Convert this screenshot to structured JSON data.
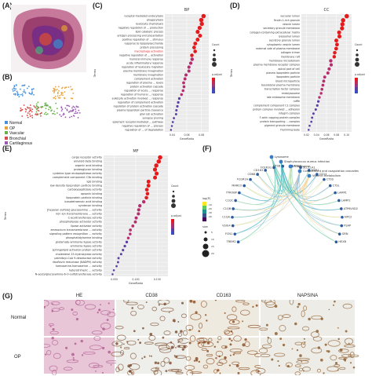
{
  "panels": {
    "a": "(A)",
    "b": "(B)",
    "c": "(C)",
    "d": "(D)",
    "e": "(E)",
    "f": "(F)",
    "g": "(G)"
  },
  "panel_b_legend": [
    "Normal",
    "OP",
    "Vascular",
    "Bronchial",
    "Cartilaginous"
  ],
  "panel_b_colors": [
    "#4a90d9",
    "#e8a33d",
    "#6ab04c",
    "#d94a4a",
    "#9b59b6"
  ],
  "chart_data": [
    {
      "type": "scatter",
      "title": "BP",
      "ylabel": "Terms",
      "xlabel": "GeneRatio",
      "categories": [
        "receptor-mediated endocytosis",
        "phagocytosis",
        "leukocyte chemotaxis",
        "negative regulation of ... production",
        "lipid catabolic process",
        "antigen processing and presentation",
        "positive regulation of ... stimulus",
        "response to lipopolysaccharide",
        "protein processing",
        "macrophage activation",
        "negative regulation of ... activation",
        "humoral immune response",
        "acute inflammatory response",
        "regulation of leukocyte migration",
        "plasma membrane invagination",
        "membrane invagination",
        "complement activation",
        "regulation of plasma ... levels",
        "protein activation cascade",
        "regulation of acute ... response",
        "regulation of humoral ... response",
        "eukocyte activation involved ... response",
        "regulation of complement activation",
        "regulation of protein activation cascade",
        "plasma lipoprotein particle clearance",
        "glial cell activation",
        "synapse pruning",
        "eplement receptor-mediated ... pathway",
        "negative regulation of ... process",
        "regulation of ... of degradation"
      ],
      "highlight": "macrophage activation",
      "ticks": [
        "0.04",
        "0.06",
        "0.08"
      ]
    },
    {
      "type": "scatter",
      "title": "CC",
      "ylabel": "Terms",
      "xlabel": "GeneRatio",
      "categories": [
        "vacuolar lumen",
        "ficolin-1-rich granule",
        "vesicle lumen",
        "secretory granule membrane",
        "collagen-containing extracellular matrix",
        "lysosomal lumen",
        "secretory granule lumen",
        "cytoplasmic vesicle lumen",
        "external side of plasma membrane",
        "collagen trimer",
        "membrane raft",
        "membrane microdomain",
        "plasma membrane receptor complex",
        "apical part of cell",
        "plasma lipoprotein particle",
        "lipoprotein particle",
        "blood microparticle",
        "basolateral plasma membrane",
        "transcription factor complex",
        "endolysosome",
        "late endosome membrane",
        "ruffle",
        "complement component C1 complex",
        "protein complex involved ... adhesion",
        "integrin complex",
        "F-actin capping protein complex",
        "protein transporting ... complex",
        "pigment granule membrane",
        "Flemming body"
      ],
      "ticks": [
        "0.02",
        "0.04",
        "0.06",
        "0.08",
        "0.10"
      ]
    },
    {
      "type": "scatter",
      "title": "MF",
      "ylabel": "Terms",
      "xlabel": "GeneRatio",
      "categories": [
        "cargo receptor activity",
        "amyloid-beta binding",
        "organic acid binding",
        "proteoglycan binding",
        "cysteine-type endopeptidase activity",
        "complement component C3b binding",
        "IgG binding",
        "low-density lipoprotein particle binding",
        "carboxypeptidase activity",
        "opsonin binding",
        "lipoprotein particle binding",
        "icosatetraenoic acid binding",
        "syndecan binding",
        "[heparan sulfate]-glucosamine ... activity",
        "iron ion transmembrane ... activity",
        "C-acyltransferase activity",
        "phospholipase activator activity",
        "lipase activator activity",
        "ammonium transmembrane ... activity",
        "signaling pattern recognition ... activity",
        "phosphatidylserine binding",
        "glutamate-ammonia ligase activity",
        "ammonia ligase activity",
        "sphingolipid activator protein activity",
        "cholesterol 25-hydroxylase activity",
        "palmitoyl-CoA 9-desaturase activity",
        "riboflavin reductase (NADPH) activity",
        "homoserine-homoserine ... activity",
        "heterotrimeric ... activity",
        "N-acetylglucosamine-6-O-sulfotransferase activity"
      ],
      "ticks": [
        "0.050",
        "0.100",
        "0.150"
      ]
    }
  ],
  "panel_f": {
    "top_labels": [
      "Lysosome",
      "Staphylococcus aureus infection",
      "Phagosome",
      "Complement and coagulation cascades",
      "Vitamin metabolism"
    ],
    "genes_left": [
      "TREM2",
      "FCN1",
      "VSIG4",
      "C1QA",
      "C1QB",
      "C1QC",
      "TYROBP",
      "MARCO",
      "FCGR1A",
      "CD68",
      "CD163",
      "FCER1G",
      "CTSB",
      "CTSD"
    ],
    "genes_right": [
      "SLC11A1",
      "MSR1",
      "CD14",
      "CTSS",
      "CTSL",
      "LAMP1",
      "LAMP2",
      "ATP6V0D2",
      "NPC2",
      "PSAP",
      "GRN",
      "HEXB"
    ],
    "legend_title_color": "log(P)",
    "legend_title_size": "size",
    "legend_color_ticks": [
      "-10",
      "-20",
      "-30",
      "-40"
    ],
    "legend_size_ticks": [
      "5",
      "10",
      "15",
      "20"
    ]
  },
  "panel_g": {
    "columns": [
      "HE",
      "CD38",
      "CD163",
      "NAPSINA"
    ],
    "rows": [
      "Normal",
      "OP"
    ]
  },
  "legend_c": {
    "color_title": "p.adjust",
    "size_title": "Count"
  },
  "legend_d": {
    "color_title": "p.adjust",
    "size_title": "Count"
  },
  "legend_e": {
    "color_title": "p.adjust",
    "size_title": "Count"
  }
}
